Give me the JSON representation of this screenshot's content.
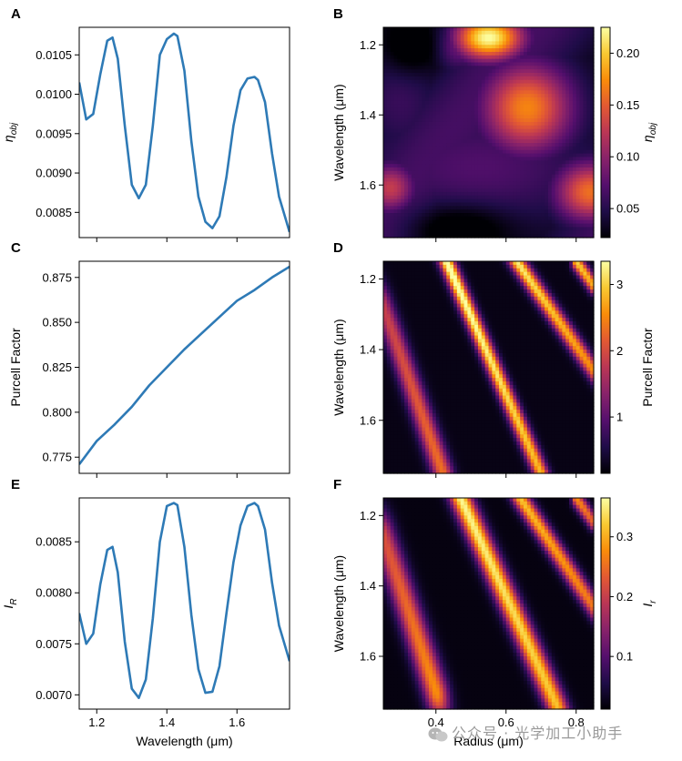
{
  "figure": {
    "watermark": "公众号 · 光学加工小助手",
    "shared_labels": {
      "wavelength": "Wavelength (μm)",
      "radius": "Radius (μm)"
    }
  },
  "chart_data": [
    {
      "panel": "A",
      "type": "line",
      "title": "",
      "xlabel": "",
      "ylabel": "η_obj",
      "xlim": [
        1.15,
        1.75
      ],
      "ylim": [
        0.00818,
        0.01085
      ],
      "yticks": [
        0.0085,
        0.009,
        0.0095,
        0.01,
        0.0105
      ],
      "ytick_labels": [
        "0.0085",
        "0.0090",
        "0.0095",
        "0.0100",
        "0.0105"
      ],
      "xticks": [
        1.2,
        1.4,
        1.6
      ],
      "xtick_labels": [],
      "series": [
        {
          "name": "η_obj",
          "color": "#2e7ab6",
          "x": [
            1.15,
            1.17,
            1.19,
            1.21,
            1.23,
            1.245,
            1.26,
            1.28,
            1.3,
            1.32,
            1.34,
            1.36,
            1.38,
            1.4,
            1.42,
            1.43,
            1.45,
            1.47,
            1.49,
            1.51,
            1.53,
            1.55,
            1.57,
            1.59,
            1.61,
            1.63,
            1.65,
            1.66,
            1.68,
            1.7,
            1.72,
            1.75
          ],
          "y": [
            0.01015,
            0.00968,
            0.00975,
            0.01025,
            0.01068,
            0.01072,
            0.01045,
            0.0096,
            0.00885,
            0.00868,
            0.00885,
            0.0096,
            0.0105,
            0.0107,
            0.01077,
            0.01074,
            0.0103,
            0.0094,
            0.0087,
            0.00838,
            0.0083,
            0.00845,
            0.00895,
            0.0096,
            0.01005,
            0.0102,
            0.01022,
            0.01018,
            0.0099,
            0.00925,
            0.0087,
            0.00825
          ]
        }
      ]
    },
    {
      "panel": "B",
      "type": "heatmap",
      "title": "",
      "xlabel": "",
      "ylabel": "Wavelength (μm)",
      "xlim": [
        0.25,
        0.85
      ],
      "ylim": [
        1.75,
        1.15
      ],
      "xticks": [
        0.4,
        0.6,
        0.8
      ],
      "xtick_labels": [],
      "yticks": [
        1.2,
        1.4,
        1.6
      ],
      "ytick_labels": [
        "1.2",
        "1.4",
        "1.6"
      ],
      "colorbar": {
        "label": "η_obj",
        "range": [
          0.022,
          0.225
        ],
        "ticks": [
          0.05,
          0.1,
          0.15,
          0.2
        ],
        "tick_labels": [
          "0.05",
          "0.10",
          "0.15",
          "0.20"
        ]
      },
      "colormap": "inferno",
      "grid_size": [
        60,
        60
      ],
      "features": [
        {
          "kind": "blob",
          "x": 0.55,
          "y": 1.18,
          "sx": 0.07,
          "sy": 0.045,
          "value": 0.225
        },
        {
          "kind": "blob",
          "x": 0.46,
          "y": 1.2,
          "sx": 0.05,
          "sy": 0.05,
          "value": 0.09
        },
        {
          "kind": "blob",
          "x": 0.66,
          "y": 1.38,
          "sx": 0.09,
          "sy": 0.09,
          "value": 0.17
        },
        {
          "kind": "blob",
          "x": 0.27,
          "y": 1.61,
          "sx": 0.05,
          "sy": 0.05,
          "value": 0.13
        },
        {
          "kind": "blob",
          "x": 0.84,
          "y": 1.62,
          "sx": 0.07,
          "sy": 0.06,
          "value": 0.16
        },
        {
          "kind": "blob",
          "x": 0.52,
          "y": 1.55,
          "sx": 0.25,
          "sy": 0.12,
          "value": 0.07
        },
        {
          "kind": "blob",
          "x": 0.3,
          "y": 1.35,
          "sx": 0.08,
          "sy": 0.12,
          "value": 0.06
        },
        {
          "kind": "dark",
          "x": 0.33,
          "y": 1.2,
          "sx": 0.06,
          "sy": 0.06
        },
        {
          "kind": "dark",
          "x": 0.47,
          "y": 1.73,
          "sx": 0.1,
          "sy": 0.05
        }
      ]
    },
    {
      "panel": "C",
      "type": "line",
      "title": "",
      "xlabel": "",
      "ylabel": "Purcell Factor",
      "xlim": [
        1.15,
        1.75
      ],
      "ylim": [
        0.766,
        0.884
      ],
      "yticks": [
        0.775,
        0.8,
        0.825,
        0.85,
        0.875
      ],
      "ytick_labels": [
        "0.775",
        "0.800",
        "0.825",
        "0.850",
        "0.875"
      ],
      "xticks": [
        1.2,
        1.4,
        1.6
      ],
      "xtick_labels": [],
      "series": [
        {
          "name": "Purcell Factor",
          "color": "#2e7ab6",
          "x": [
            1.15,
            1.2,
            1.25,
            1.3,
            1.35,
            1.4,
            1.45,
            1.5,
            1.55,
            1.6,
            1.65,
            1.7,
            1.75
          ],
          "y": [
            0.771,
            0.784,
            0.793,
            0.803,
            0.815,
            0.825,
            0.835,
            0.844,
            0.853,
            0.862,
            0.868,
            0.875,
            0.881
          ]
        }
      ]
    },
    {
      "panel": "D",
      "type": "heatmap",
      "title": "",
      "xlabel": "",
      "ylabel": "Wavelength (μm)",
      "xlim": [
        0.25,
        0.85
      ],
      "ylim": [
        1.75,
        1.15
      ],
      "xticks": [
        0.4,
        0.6,
        0.8
      ],
      "xtick_labels": [],
      "yticks": [
        1.2,
        1.4,
        1.6
      ],
      "ytick_labels": [
        "1.2",
        "1.4",
        "1.6"
      ],
      "colorbar": {
        "label": "Purcell Factor",
        "range": [
          0.15,
          3.35
        ],
        "ticks": [
          1,
          2,
          3
        ],
        "tick_labels": [
          "1",
          "2",
          "3"
        ]
      },
      "colormap": "inferno",
      "grid_size": [
        60,
        60
      ],
      "features": [
        {
          "kind": "band",
          "x0": 0.25,
          "y0": 1.28,
          "x1": 0.42,
          "y1": 1.75,
          "width": 0.018,
          "value_top": 1.6,
          "value_bottom": 2.1
        },
        {
          "kind": "band",
          "x0": 0.43,
          "y0": 1.15,
          "x1": 0.7,
          "y1": 1.75,
          "width": 0.013,
          "value_top": 3.3,
          "value_bottom": 2.6
        },
        {
          "kind": "band",
          "x0": 0.63,
          "y0": 1.15,
          "x1": 0.85,
          "y1": 1.46,
          "width": 0.012,
          "value_top": 3.0,
          "value_bottom": 2.3
        },
        {
          "kind": "band",
          "x0": 0.8,
          "y0": 1.15,
          "x1": 0.85,
          "y1": 1.22,
          "width": 0.01,
          "value_top": 2.8,
          "value_bottom": 2.5
        }
      ],
      "background": 0.25
    },
    {
      "panel": "E",
      "type": "line",
      "title": "",
      "xlabel": "Wavelength (μm)",
      "ylabel": "I_R",
      "xlim": [
        1.15,
        1.75
      ],
      "ylim": [
        0.00686,
        0.00893
      ],
      "yticks": [
        0.007,
        0.0075,
        0.008,
        0.0085
      ],
      "ytick_labels": [
        "0.0070",
        "0.0075",
        "0.0080",
        "0.0085"
      ],
      "xticks": [
        1.2,
        1.4,
        1.6
      ],
      "xtick_labels": [
        "1.2",
        "1.4",
        "1.6"
      ],
      "series": [
        {
          "name": "I_R",
          "color": "#2e7ab6",
          "x": [
            1.15,
            1.17,
            1.19,
            1.21,
            1.23,
            1.245,
            1.26,
            1.28,
            1.3,
            1.32,
            1.34,
            1.36,
            1.38,
            1.4,
            1.42,
            1.43,
            1.45,
            1.47,
            1.49,
            1.51,
            1.53,
            1.55,
            1.57,
            1.59,
            1.61,
            1.63,
            1.65,
            1.66,
            1.68,
            1.7,
            1.72,
            1.75
          ],
          "y": [
            0.0078,
            0.0075,
            0.0076,
            0.00808,
            0.00842,
            0.00845,
            0.0082,
            0.00752,
            0.00706,
            0.00697,
            0.00715,
            0.00775,
            0.0085,
            0.00885,
            0.00888,
            0.00886,
            0.00845,
            0.00778,
            0.00725,
            0.00702,
            0.00703,
            0.00728,
            0.0078,
            0.0083,
            0.00866,
            0.00885,
            0.00888,
            0.00885,
            0.00862,
            0.0081,
            0.00768,
            0.00733
          ]
        }
      ]
    },
    {
      "panel": "F",
      "type": "heatmap",
      "title": "",
      "xlabel": "Radius (μm)",
      "ylabel": "Wavelength (μm)",
      "xlim": [
        0.25,
        0.85
      ],
      "ylim": [
        1.75,
        1.15
      ],
      "xticks": [
        0.4,
        0.6,
        0.8
      ],
      "xtick_labels": [
        "0.4",
        "0.6",
        "0.8"
      ],
      "yticks": [
        1.2,
        1.4,
        1.6
      ],
      "ytick_labels": [
        "1.2",
        "1.4",
        "1.6"
      ],
      "colorbar": {
        "label": "I_r",
        "range": [
          0.012,
          0.365
        ],
        "ticks": [
          0.1,
          0.2,
          0.3
        ],
        "tick_labels": [
          "0.1",
          "0.2",
          "0.3"
        ]
      },
      "colormap": "inferno",
      "grid_size": [
        60,
        60
      ],
      "features": [
        {
          "kind": "band",
          "x0": 0.25,
          "y0": 1.26,
          "x1": 0.4,
          "y1": 1.7,
          "width": 0.022,
          "value_top": 0.2,
          "value_bottom": 0.26
        },
        {
          "kind": "band",
          "x0": 0.47,
          "y0": 1.15,
          "x1": 0.74,
          "y1": 1.73,
          "width": 0.018,
          "value_top": 0.34,
          "value_bottom": 0.3
        },
        {
          "kind": "band",
          "x0": 0.64,
          "y0": 1.15,
          "x1": 0.85,
          "y1": 1.46,
          "width": 0.013,
          "value_top": 0.3,
          "value_bottom": 0.24
        },
        {
          "kind": "band",
          "x0": 0.8,
          "y0": 1.15,
          "x1": 0.85,
          "y1": 1.22,
          "width": 0.01,
          "value_top": 0.26,
          "value_bottom": 0.22
        }
      ],
      "background": 0.02
    }
  ]
}
